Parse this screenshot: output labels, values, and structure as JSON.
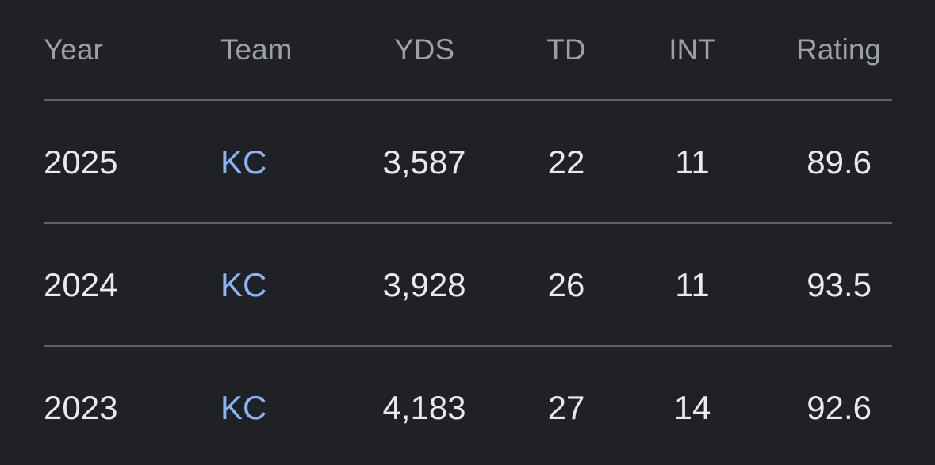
{
  "table": {
    "columns": [
      "Year",
      "Team",
      "YDS",
      "TD",
      "INT",
      "Rating"
    ],
    "rows": [
      [
        "2025",
        "KC",
        "3,587",
        "22",
        "11",
        "89.6"
      ],
      [
        "2024",
        "KC",
        "3,928",
        "26",
        "11",
        "93.5"
      ],
      [
        "2023",
        "KC",
        "4,183",
        "27",
        "14",
        "92.6"
      ]
    ]
  }
}
